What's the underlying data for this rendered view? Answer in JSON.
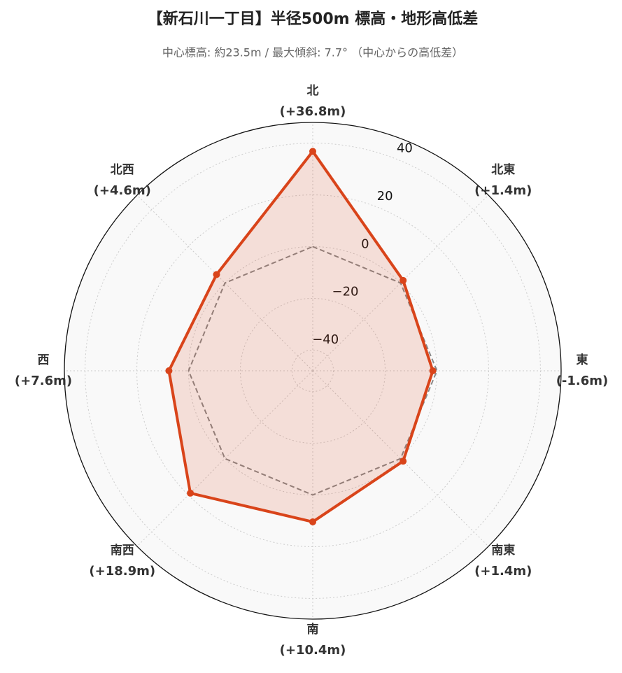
{
  "chart_data": {
    "type": "radar",
    "title": "【新石川一丁目】半径500m 標高・地形高低差",
    "subtitle": "中心標高: 約23.5m / 最大傾斜: 7.7°  （中心からの高低差）",
    "categories": [
      "北",
      "北東",
      "東",
      "南東",
      "南",
      "南西",
      "西",
      "北西"
    ],
    "values": [
      36.8,
      1.4,
      -1.6,
      1.4,
      10.4,
      18.9,
      7.6,
      4.6
    ],
    "value_labels": [
      "(+36.8m)",
      "(+1.4m)",
      "(-1.6m)",
      "(+1.4m)",
      "(+10.4m)",
      "(+18.9m)",
      "(+7.6m)",
      "(+4.6m)"
    ],
    "color": "#d9441a",
    "reference_line": 0,
    "ylim": [
      -48,
      48
    ],
    "yticks": [
      {
        "value": -40,
        "label": "−40"
      },
      {
        "value": -20,
        "label": "−20"
      },
      0,
      20,
      40
    ],
    "grid": true
  }
}
